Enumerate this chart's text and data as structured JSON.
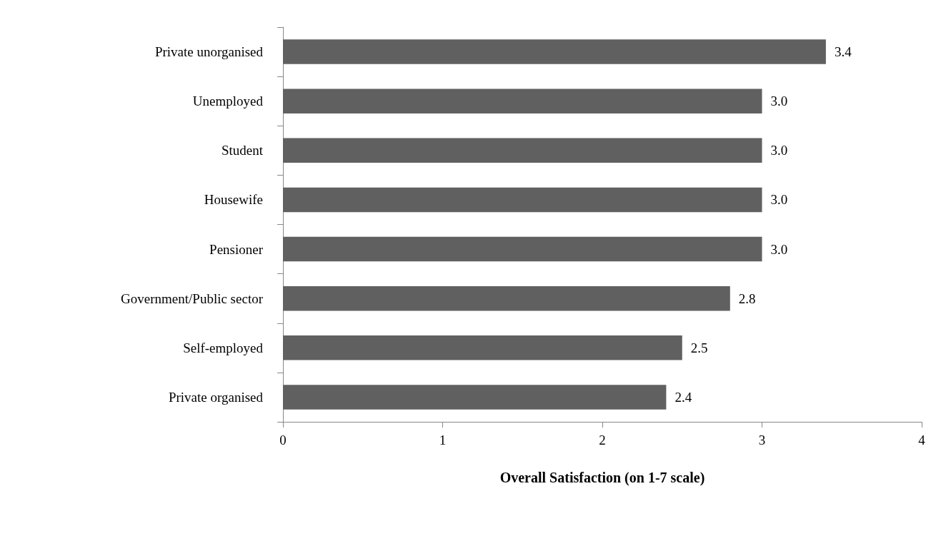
{
  "chart_data": {
    "type": "bar",
    "orientation": "horizontal",
    "xlabel": "Overall Satisfaction (on 1-7 scale)",
    "categories": [
      "Private unorganised",
      "Unemployed",
      "Student",
      "Housewife",
      "Pensioner",
      "Government/Public sector",
      "Self-employed",
      "Private organised"
    ],
    "values": [
      3.4,
      3.0,
      3.0,
      3.0,
      3.0,
      2.8,
      2.5,
      2.4
    ],
    "value_labels": [
      "3.4",
      "3.0",
      "3.0",
      "3.0",
      "3.0",
      "2.8",
      "2.5",
      "2.4"
    ],
    "color": "#606060",
    "xlim": [
      0,
      4
    ],
    "xticks": [
      0,
      1,
      2,
      3,
      4
    ],
    "grid": false
  }
}
